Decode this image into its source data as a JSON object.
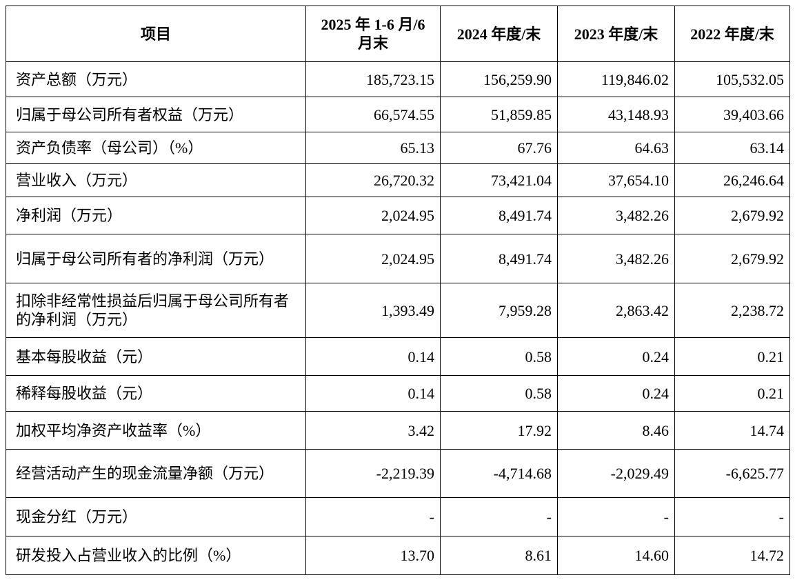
{
  "table": {
    "header": [
      "项目",
      "2025 年 1-6 月/6 月末",
      "2024 年度/末",
      "2023 年度/末",
      "2022 年度/末"
    ],
    "rows": [
      [
        "资产总额（万元）",
        "185,723.15",
        "156,259.90",
        "119,846.02",
        "105,532.05"
      ],
      [
        "归属于母公司所有者权益（万元）",
        "66,574.55",
        "51,859.85",
        "43,148.93",
        "39,403.66"
      ],
      [
        "资产负债率（母公司）（%）",
        "65.13",
        "67.76",
        "64.63",
        "63.14"
      ],
      [
        "营业收入（万元）",
        "26,720.32",
        "73,421.04",
        "37,654.10",
        "26,246.64"
      ],
      [
        "净利润（万元）",
        "2,024.95",
        "8,491.74",
        "3,482.26",
        "2,679.92"
      ],
      [
        "归属于母公司所有者的净利润（万元）",
        "2,024.95",
        "8,491.74",
        "3,482.26",
        "2,679.92"
      ],
      [
        "扣除非经常性损益后归属于母公司所有者的净利润（万元）",
        "1,393.49",
        "7,959.28",
        "2,863.42",
        "2,238.72"
      ],
      [
        "基本每股收益（元）",
        "0.14",
        "0.58",
        "0.24",
        "0.21"
      ],
      [
        "稀释每股收益（元）",
        "0.14",
        "0.58",
        "0.24",
        "0.21"
      ],
      [
        "加权平均净资产收益率（%）",
        "3.42",
        "17.92",
        "8.46",
        "14.74"
      ],
      [
        "经营活动产生的现金流量净额（万元）",
        "-2,219.39",
        "-4,714.68",
        "-2,029.49",
        "-6,625.77"
      ],
      [
        "现金分红（万元）",
        "-",
        "-",
        "-",
        "-"
      ],
      [
        "研发投入占营业收入的比例（%）",
        "13.70",
        "8.61",
        "14.60",
        "14.72"
      ]
    ]
  }
}
